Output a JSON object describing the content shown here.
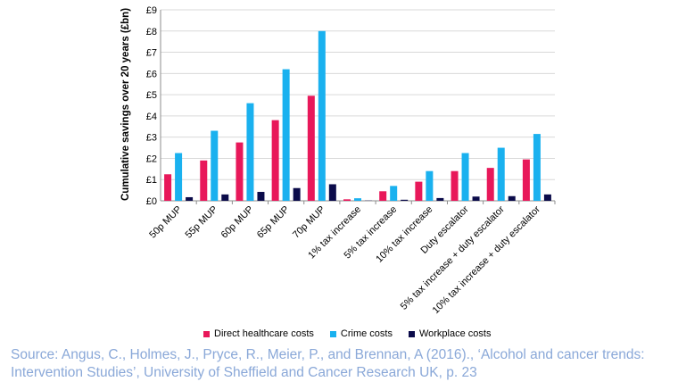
{
  "chart_data": {
    "type": "bar",
    "ylabel": "Cumulative savings over 20 years (£bn)",
    "ylim": [
      0,
      9
    ],
    "yticks": [
      "£0",
      "£1",
      "£2",
      "£3",
      "£4",
      "£5",
      "£6",
      "£7",
      "£8",
      "£9"
    ],
    "categories": [
      "50p MUP",
      "55p MUP",
      "60p MUP",
      "65p MUP",
      "70p MUP",
      "1% tax increase",
      "5% tax increase",
      "10% tax increase",
      "Duty escalator",
      "5% tax increase + duty escalator",
      "10% tax increase + duty escalator"
    ],
    "series": [
      {
        "name": "Direct healthcare costs",
        "color": "#e8185a",
        "values": [
          1.25,
          1.9,
          2.75,
          3.8,
          4.95,
          0.07,
          0.45,
          0.9,
          1.4,
          1.55,
          1.95
        ]
      },
      {
        "name": "Crime costs",
        "color": "#1ab1ef",
        "values": [
          2.25,
          3.3,
          4.6,
          6.2,
          8.0,
          0.12,
          0.7,
          1.4,
          2.25,
          2.5,
          3.15
        ]
      },
      {
        "name": "Workplace costs",
        "color": "#0b0b4a",
        "values": [
          0.17,
          0.3,
          0.42,
          0.6,
          0.78,
          0.01,
          0.05,
          0.13,
          0.2,
          0.22,
          0.3
        ]
      }
    ],
    "legend_position": "bottom"
  },
  "source": "Source: Angus, C., Holmes, J., Pryce, R., Meier, P., and Brennan, A (2016)., ‘Alcohol and cancer trends: Intervention Studies’, University of Sheffield and Cancer Research UK, p. 23"
}
